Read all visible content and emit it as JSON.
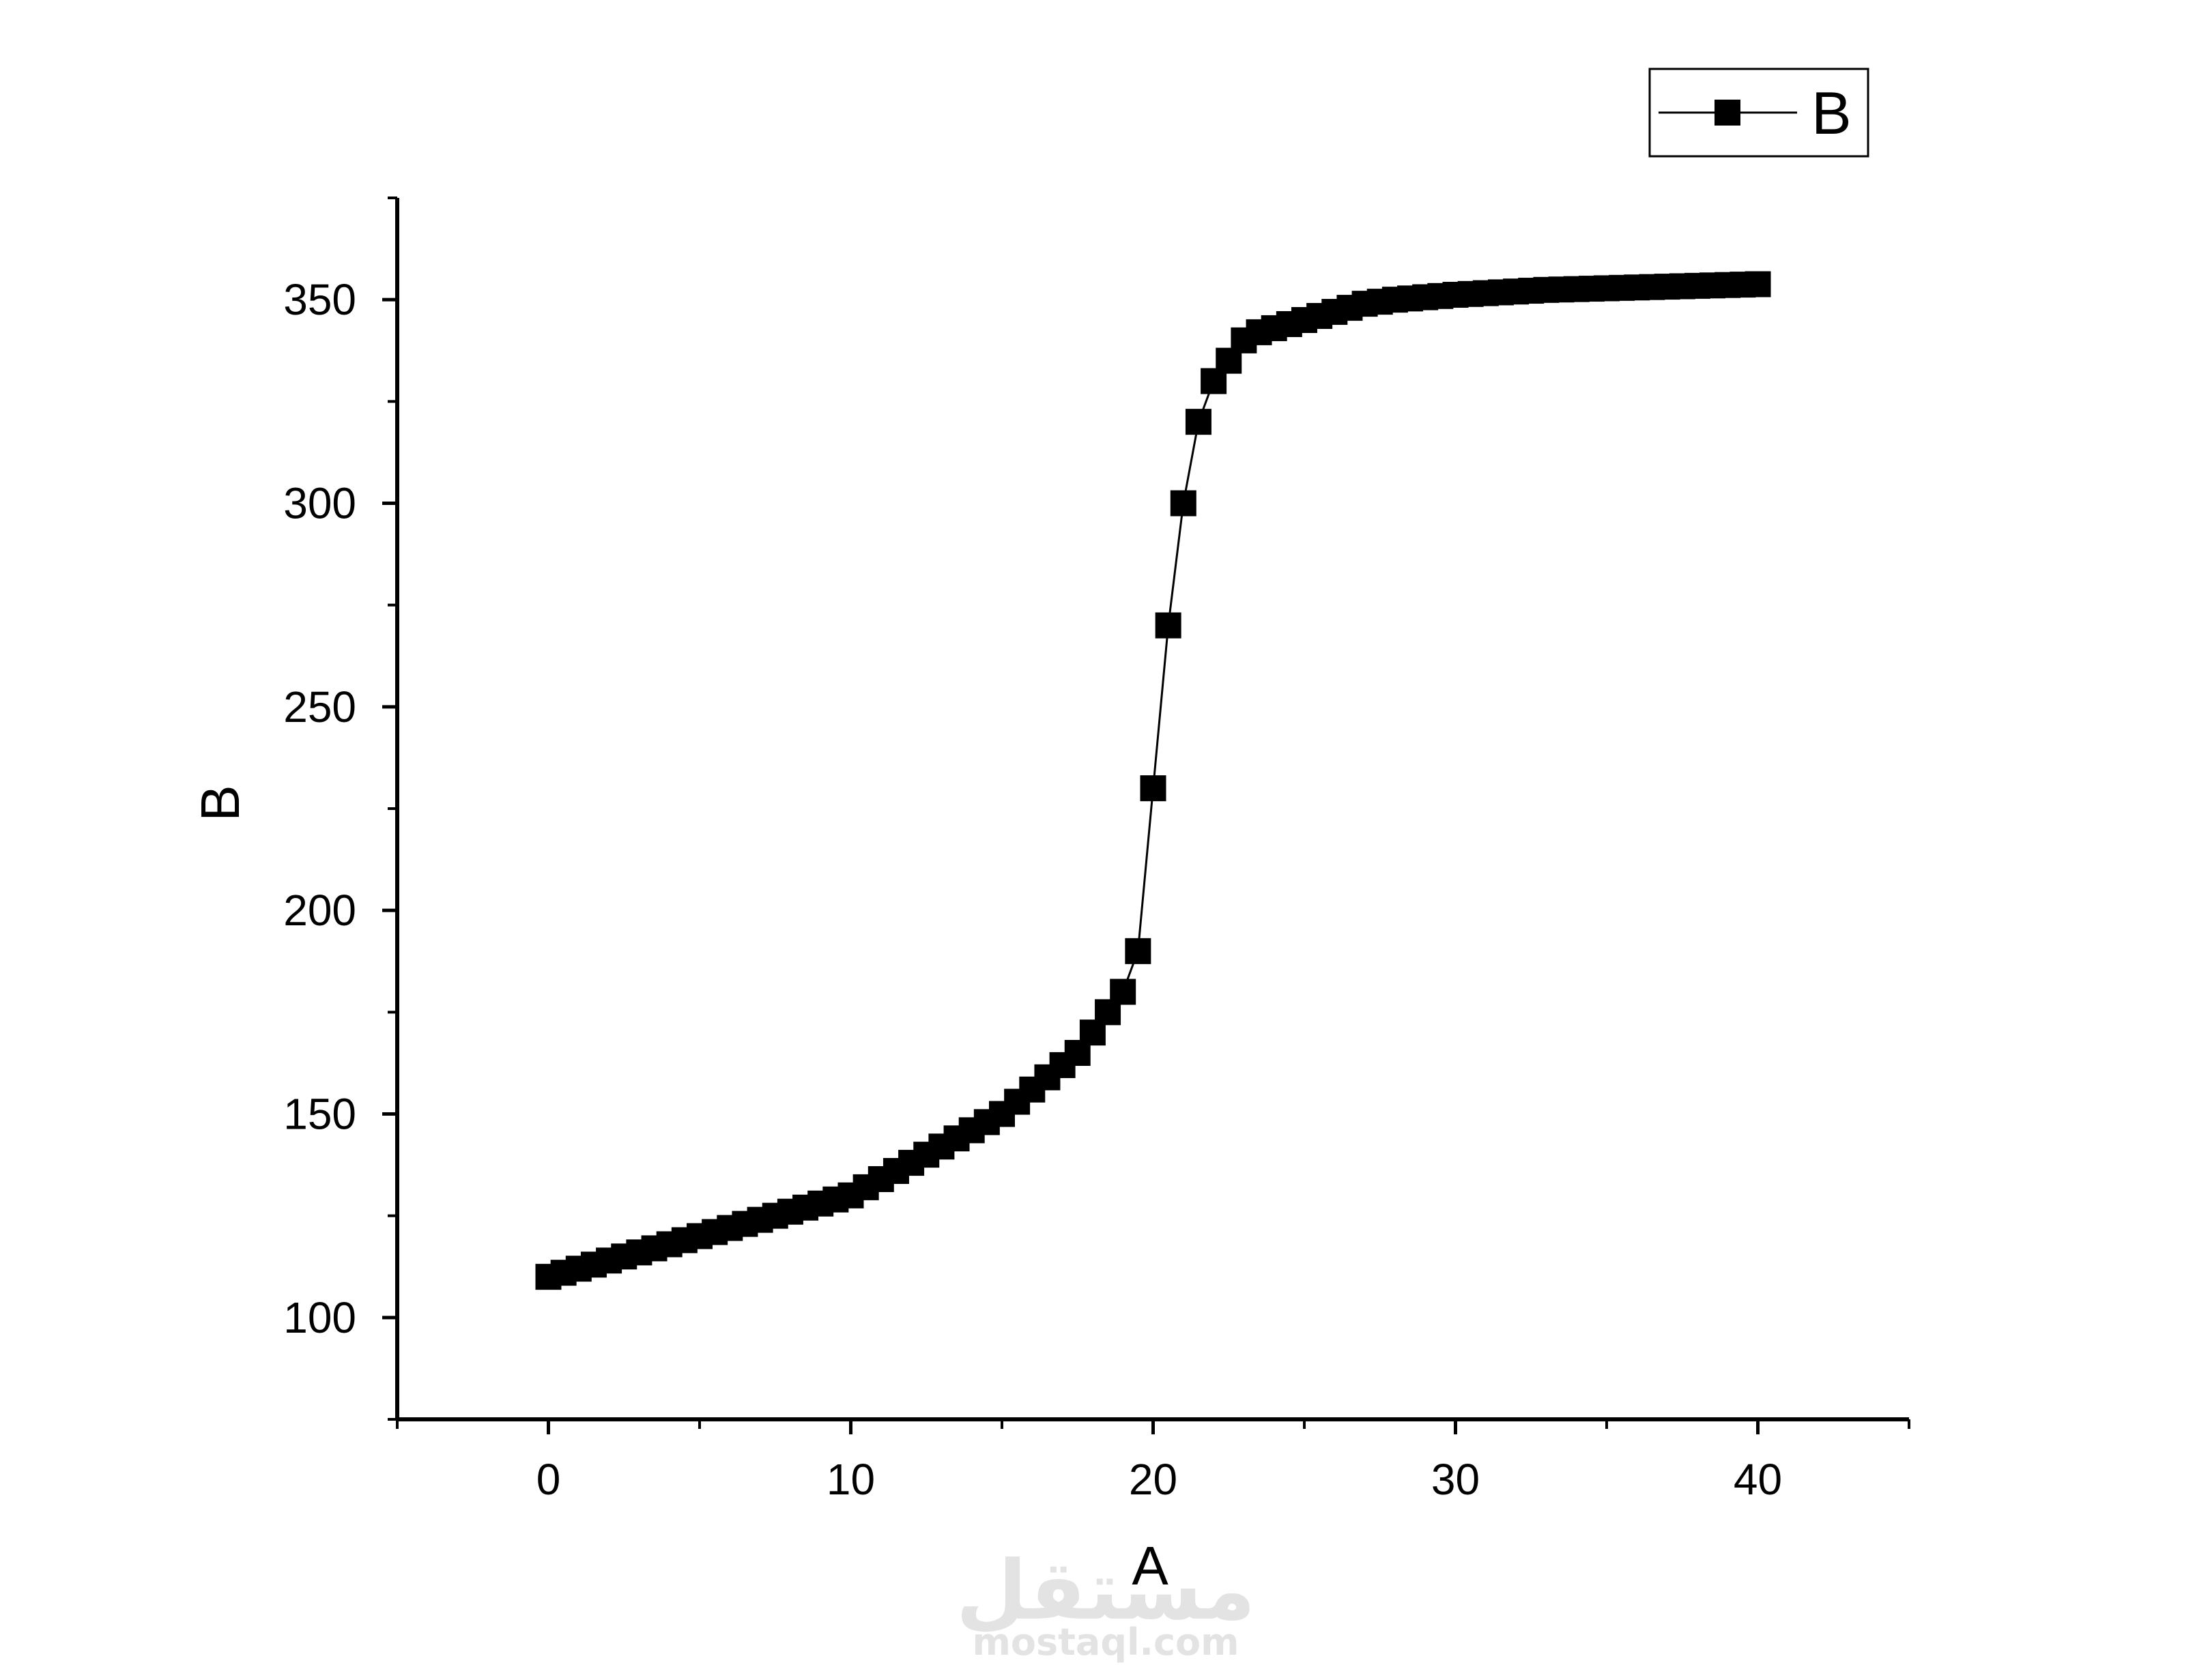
{
  "chart_data": {
    "type": "line",
    "xlabel": "A",
    "ylabel": "B",
    "xlim": [
      -5,
      45
    ],
    "ylim": [
      75,
      375
    ],
    "x_ticks": [
      0,
      10,
      20,
      30,
      40
    ],
    "x_minor_ticks": [
      -5,
      5,
      15,
      25,
      35,
      45
    ],
    "y_ticks": [
      100,
      150,
      200,
      250,
      300,
      350
    ],
    "y_minor_ticks": [
      75,
      125,
      175,
      225,
      275,
      325,
      375
    ],
    "legend_position": "top-right",
    "marker": "square",
    "color": "#000000",
    "series": [
      {
        "name": "B",
        "x": [
          0,
          0.5,
          1,
          1.5,
          2,
          2.5,
          3,
          3.5,
          4,
          4.5,
          5,
          5.5,
          6,
          6.5,
          7,
          7.5,
          8,
          8.5,
          9,
          9.5,
          10,
          10.5,
          11,
          11.5,
          12,
          12.5,
          13,
          13.5,
          14,
          14.5,
          15,
          15.5,
          16,
          16.5,
          17,
          17.5,
          18,
          18.5,
          19,
          19.5,
          20,
          20.5,
          21,
          21.5,
          22,
          22.5,
          23,
          23.5,
          24,
          24.5,
          25,
          25.5,
          26,
          26.5,
          27,
          27.5,
          28,
          28.5,
          29,
          29.5,
          30,
          30.5,
          31,
          31.5,
          32,
          32.5,
          33,
          33.5,
          34,
          34.5,
          35,
          35.5,
          36,
          36.5,
          37,
          37.5,
          38,
          38.5,
          39,
          39.5,
          40
        ],
        "values": [
          110,
          111,
          112,
          113,
          114,
          115,
          116,
          117,
          118,
          119,
          120,
          121,
          122,
          123,
          124,
          125,
          126,
          127,
          128,
          129,
          130,
          132,
          134,
          136,
          138,
          140,
          142,
          144,
          146,
          148,
          150,
          153,
          156,
          159,
          162,
          165,
          170,
          175,
          180,
          190,
          230,
          270,
          300,
          320,
          330,
          335,
          340,
          342,
          343,
          344,
          345,
          346,
          347,
          348,
          349,
          349.5,
          350,
          350.3,
          350.6,
          350.9,
          351.2,
          351.4,
          351.6,
          351.8,
          352,
          352.2,
          352.4,
          352.5,
          352.6,
          352.7,
          352.8,
          352.9,
          353,
          353.1,
          353.2,
          353.3,
          353.4,
          353.5,
          353.6,
          353.7,
          353.8
        ]
      }
    ]
  },
  "watermark": {
    "arabic": "مستقل",
    "latin": "mostaql.com"
  }
}
